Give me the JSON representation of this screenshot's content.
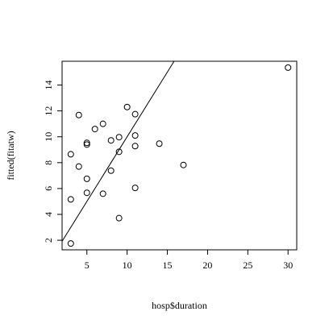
{
  "chart_data": {
    "type": "scatter",
    "x_label": "hosp$duration",
    "y_label": "fitted(fitatw)",
    "x": [
      30,
      3,
      3,
      3,
      4,
      4,
      5,
      5,
      5,
      5,
      6,
      7,
      7,
      8,
      8,
      9,
      9,
      9,
      10,
      11,
      11,
      11,
      11,
      14,
      17
    ],
    "values": [
      15.35,
      1.75,
      5.16,
      8.65,
      11.68,
      7.7,
      9.53,
      9.4,
      6.75,
      5.67,
      10.6,
      11.0,
      5.6,
      9.72,
      7.38,
      9.97,
      8.84,
      3.71,
      12.3,
      11.75,
      10.1,
      9.28,
      6.05,
      9.47,
      7.82
    ],
    "color": "#000000",
    "xlim": [
      1.92,
      31.08
    ],
    "ylim": [
      1.26,
      15.84
    ],
    "xticks": [
      5,
      10,
      15,
      20,
      25,
      30
    ],
    "yticks": [
      2,
      4,
      6,
      8,
      10,
      12,
      14
    ],
    "reference_line": {
      "intercept": 0,
      "slope": 1
    }
  }
}
